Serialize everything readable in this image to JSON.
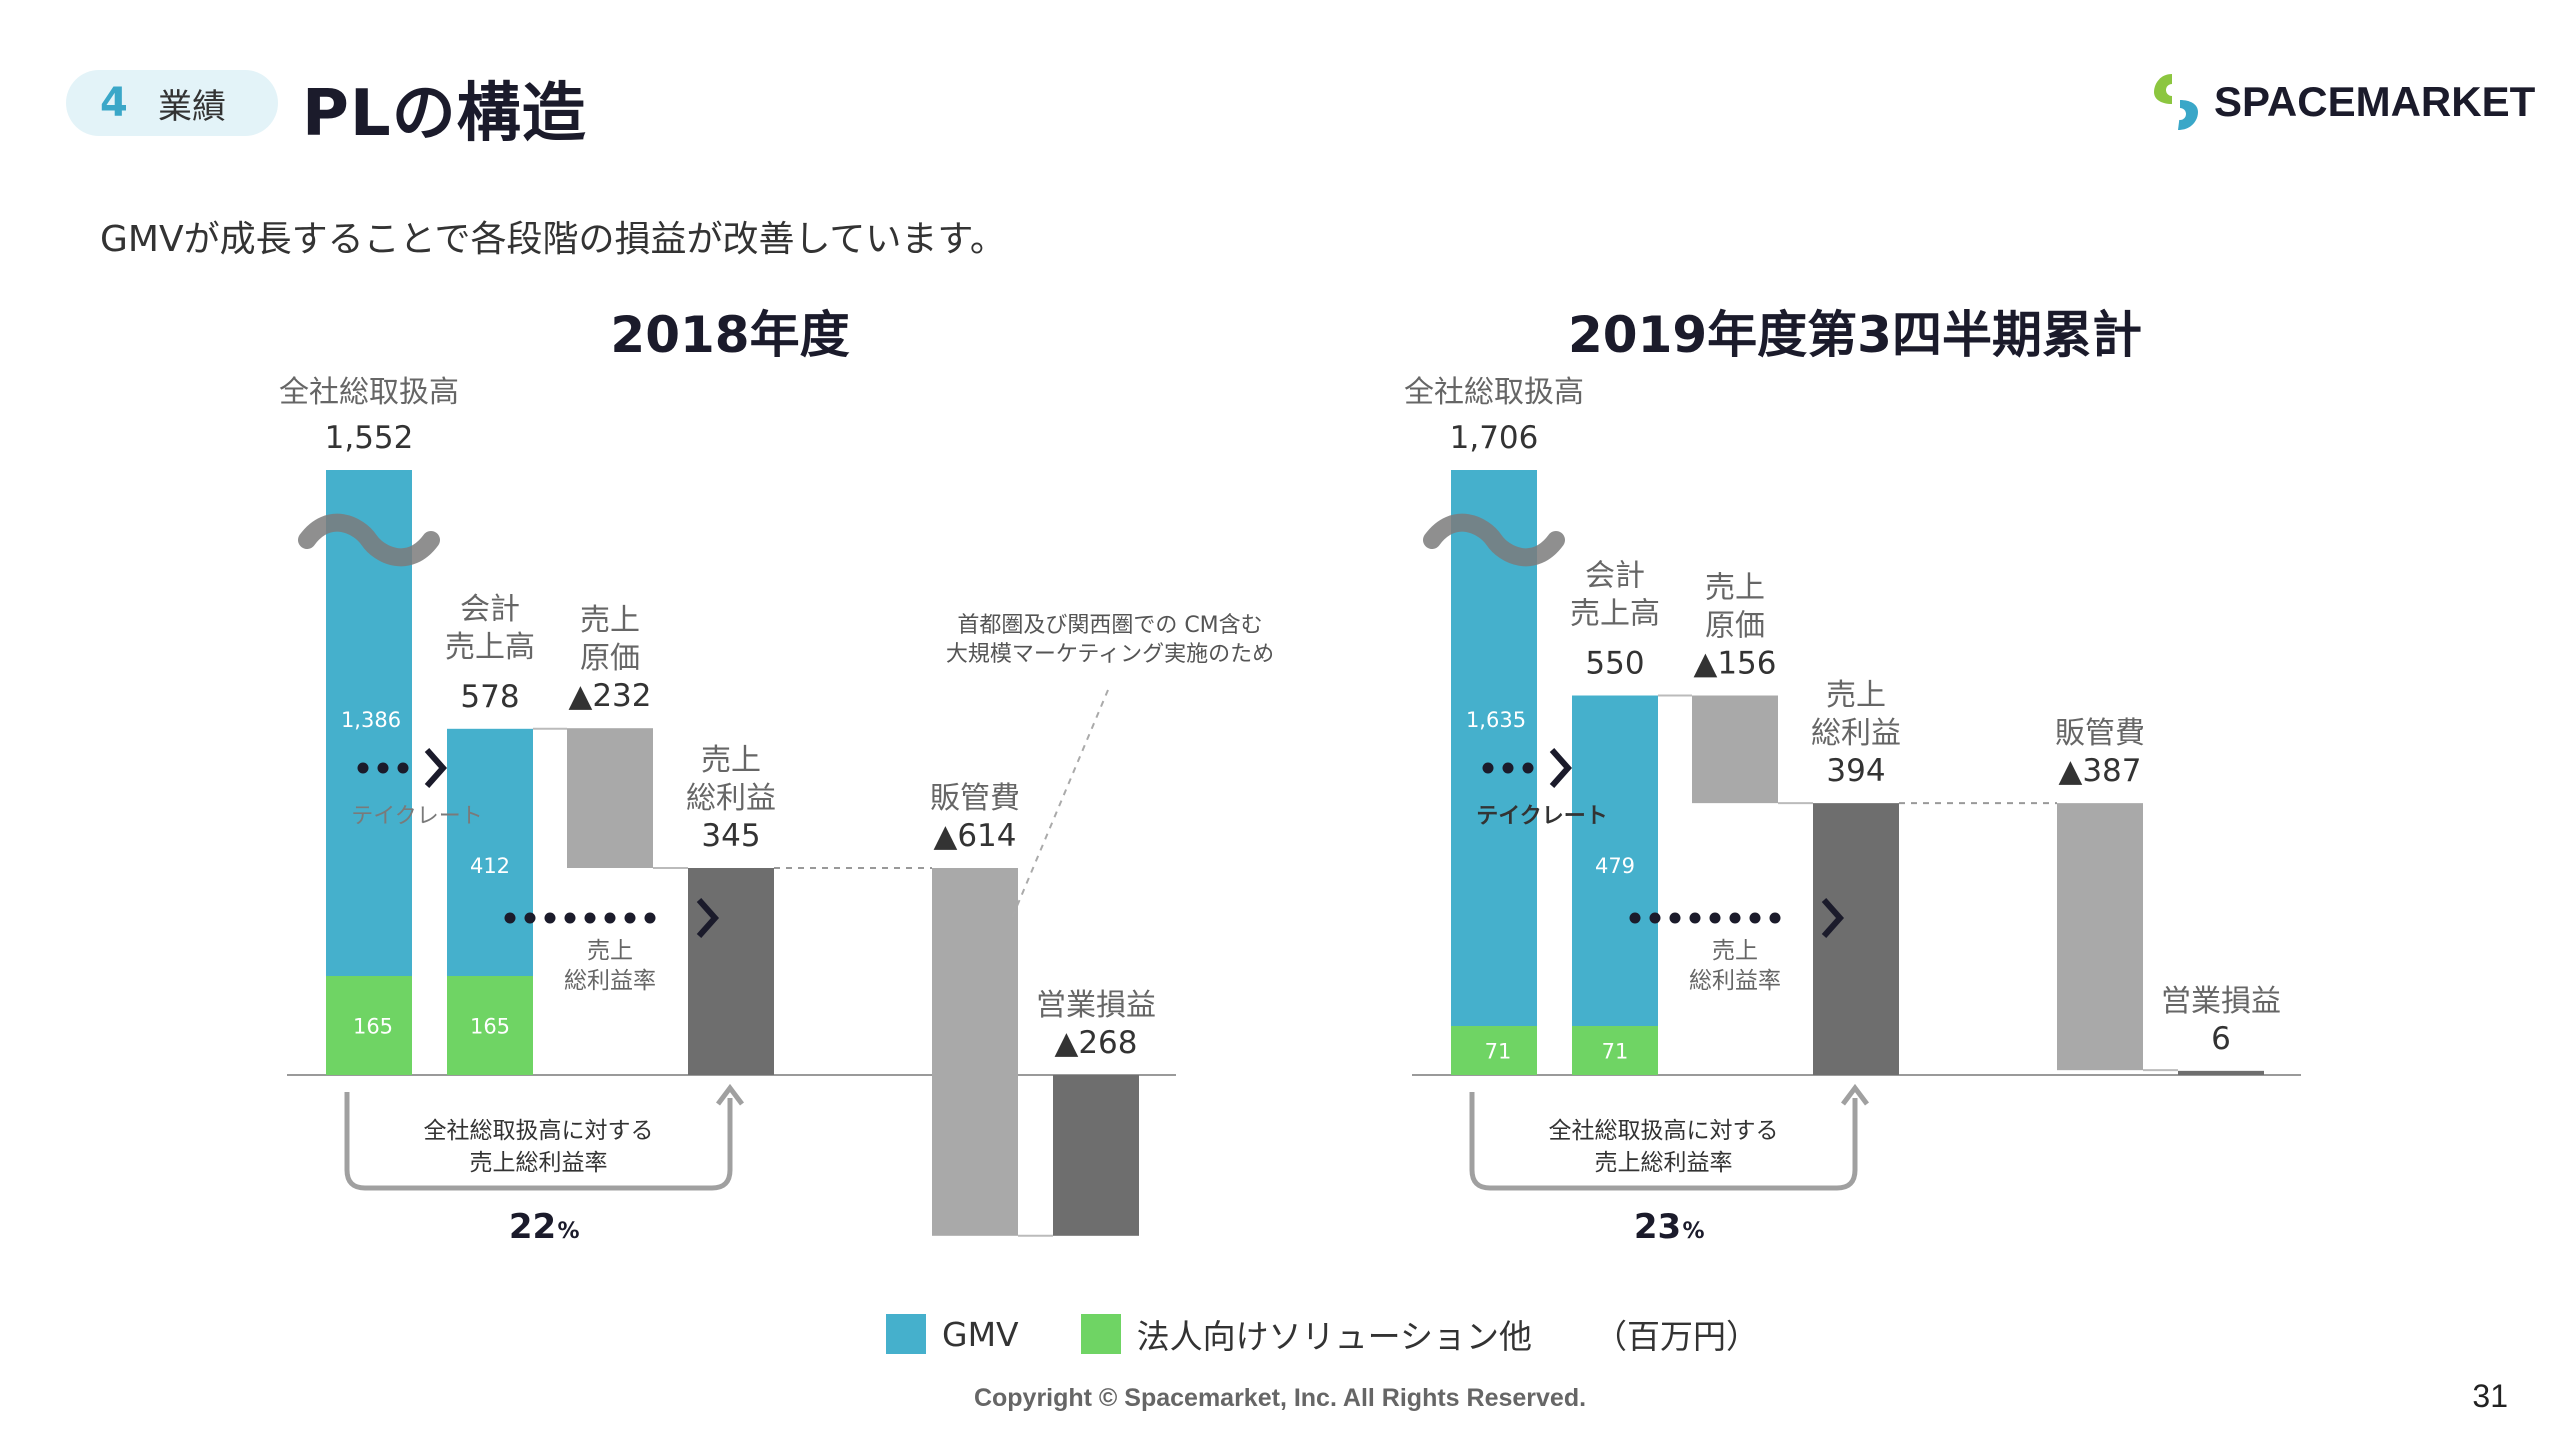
{
  "header": {
    "section_number": "4",
    "section_label": "業績",
    "title": "PLの構造"
  },
  "logo": {
    "text": "SPACEMARKET",
    "colors": [
      "#8cc63f",
      "#3aa7c8"
    ]
  },
  "lead": "GMVが成長することで各段階の損益が改善しています。",
  "colors": {
    "gmv": "#45b0cc",
    "corporate": "#6fd464",
    "light_gray": "#a9a9a9",
    "dark_gray": "#6e6e6e",
    "navy": "#1b1b2b"
  },
  "chart_data": [
    {
      "type": "bar",
      "title": "2018年度",
      "bars": [
        {
          "label": [
            "全社総取扱高"
          ],
          "value_text": "1,552",
          "gmv": 1386,
          "corporate": 165,
          "gmv_text": "1,386",
          "corporate_text": "165",
          "broken_axis": true
        },
        {
          "label": [
            "会計",
            "売上高"
          ],
          "value_text": "578",
          "gmv": 412,
          "corporate": 165,
          "gmv_text": "412",
          "corporate_text": "165"
        },
        {
          "label": [
            "売上",
            "原価"
          ],
          "value_text": "▲232",
          "from": 578,
          "to": 345,
          "kind": "cost"
        },
        {
          "label": [
            "売上",
            "総利益"
          ],
          "value_text": "345",
          "from": 345,
          "to": 0,
          "kind": "profit"
        },
        {
          "label": [
            "販管費"
          ],
          "value_text": "▲614",
          "from": 345,
          "to": -268,
          "kind": "cost"
        },
        {
          "label": [
            "営業損益"
          ],
          "value_text": "▲268",
          "from": 0,
          "to": -268,
          "kind": "profit"
        }
      ],
      "take_rate_label": "テイクレート",
      "gross_margin_label": [
        "売上",
        "総利益率"
      ],
      "ratio_label": [
        "全社総取扱高に対する",
        "売上総利益率"
      ],
      "ratio_value": "22",
      "ratio_unit": "%",
      "annotation": [
        "首都圏及び関西圏での CM含む",
        "大規模マーケティング実施のため"
      ]
    },
    {
      "type": "bar",
      "title": "2019年度第3四半期累計",
      "bars": [
        {
          "label": [
            "全社総取扱高"
          ],
          "value_text": "1,706",
          "gmv": 1635,
          "corporate": 71,
          "gmv_text": "1,635",
          "corporate_text": "71",
          "broken_axis": true
        },
        {
          "label": [
            "会計",
            "売上高"
          ],
          "value_text": "550",
          "gmv": 479,
          "corporate": 71,
          "gmv_text": "479",
          "corporate_text": "71"
        },
        {
          "label": [
            "売上",
            "原価"
          ],
          "value_text": "▲156",
          "from": 550,
          "to": 394,
          "kind": "cost"
        },
        {
          "label": [
            "売上",
            "総利益"
          ],
          "value_text": "394",
          "from": 394,
          "to": 0,
          "kind": "profit"
        },
        {
          "label": [
            "販管費"
          ],
          "value_text": "▲387",
          "from": 394,
          "to": 7,
          "kind": "cost"
        },
        {
          "label": [
            "営業損益"
          ],
          "value_text": "6",
          "from": 6,
          "to": 0,
          "kind": "profit"
        }
      ],
      "take_rate_label": "テイクレート",
      "gross_margin_label": [
        "売上",
        "総利益率"
      ],
      "ratio_label": [
        "全社総取扱高に対する",
        "売上総利益率"
      ],
      "ratio_value": "23",
      "ratio_unit": "%"
    }
  ],
  "legend": {
    "gmv": "GMV",
    "corporate": "法人向けソリューション他",
    "unit": "（百万円）"
  },
  "footer": {
    "copyright": "Copyright © Spacemarket, Inc. All Rights Reserved.",
    "page": "31"
  }
}
